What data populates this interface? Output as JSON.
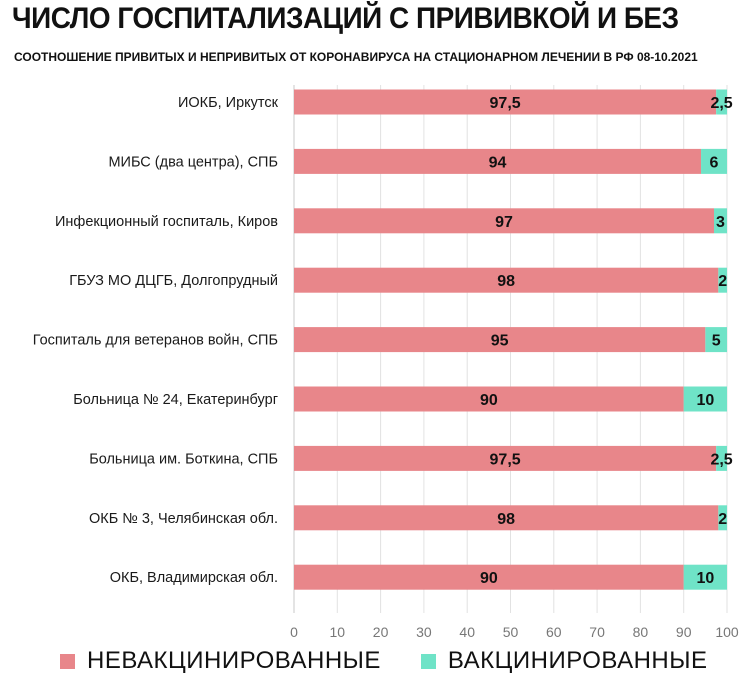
{
  "title": "ЧИСЛО ГОСПИТАЛИЗАЦИЙ С ПРИВИВКОЙ И БЕЗ",
  "subtitle": "СООТНОШЕНИЕ ПРИВИТЫХ И НЕПРИВИТЫХ ОТ КОРОНАВИРУСА НА СТАЦИОНАРНОМ ЛЕЧЕНИИ В РФ 08-10.2021",
  "legend": [
    {
      "label": "НЕВАКЦИНИРОВАННЫЕ",
      "color": "#e8868a"
    },
    {
      "label": "ВАКЦИНИРОВАННЫЕ",
      "color": "#6fe3c7"
    }
  ],
  "chart_data": {
    "type": "bar",
    "orientation": "horizontal",
    "stacked": true,
    "title": "ЧИСЛО ГОСПИТАЛИЗАЦИЙ С ПРИВИВКОЙ И БЕЗ",
    "subtitle": "СООТНОШЕНИЕ ПРИВИТЫХ И НЕПРИВИТЫХ ОТ КОРОНАВИРУСА НА СТАЦИОНАРНОМ ЛЕЧЕНИИ В РФ 08-10.2021",
    "categories": [
      "ИОКБ, Иркутск",
      "МИБС (два центра), СПБ",
      "Инфекционный госпиталь, Киров",
      "ГБУЗ МО ДЦГБ, Долгопрудный",
      "Госпиталь для ветеранов войн, СПБ",
      "Больница № 24, Екатеринбург",
      "Больница им. Боткина, СПБ",
      "ОКБ № 3, Челябинская обл.",
      "ОКБ, Владимирская обл."
    ],
    "series": [
      {
        "name": "НЕВАКЦИНИРОВАННЫЕ",
        "color": "#e8868a",
        "values": [
          97.5,
          94,
          97,
          98,
          95,
          90,
          97.5,
          98,
          90
        ],
        "labels": [
          "97,5",
          "94",
          "97",
          "98",
          "95",
          "90",
          "97,5",
          "98",
          "90"
        ]
      },
      {
        "name": "ВАКЦИНИРОВАННЫЕ",
        "color": "#6fe3c7",
        "values": [
          2.5,
          6,
          3,
          2,
          5,
          10,
          2.5,
          2,
          10
        ],
        "labels": [
          "2,5",
          "6",
          "3",
          "2",
          "5",
          "10",
          "2,5",
          "2",
          "10"
        ]
      }
    ],
    "xlim": [
      0,
      100
    ],
    "xticks": [
      0,
      10,
      20,
      30,
      40,
      50,
      60,
      70,
      80,
      90,
      100
    ],
    "grid": true,
    "legend_position": "bottom"
  }
}
